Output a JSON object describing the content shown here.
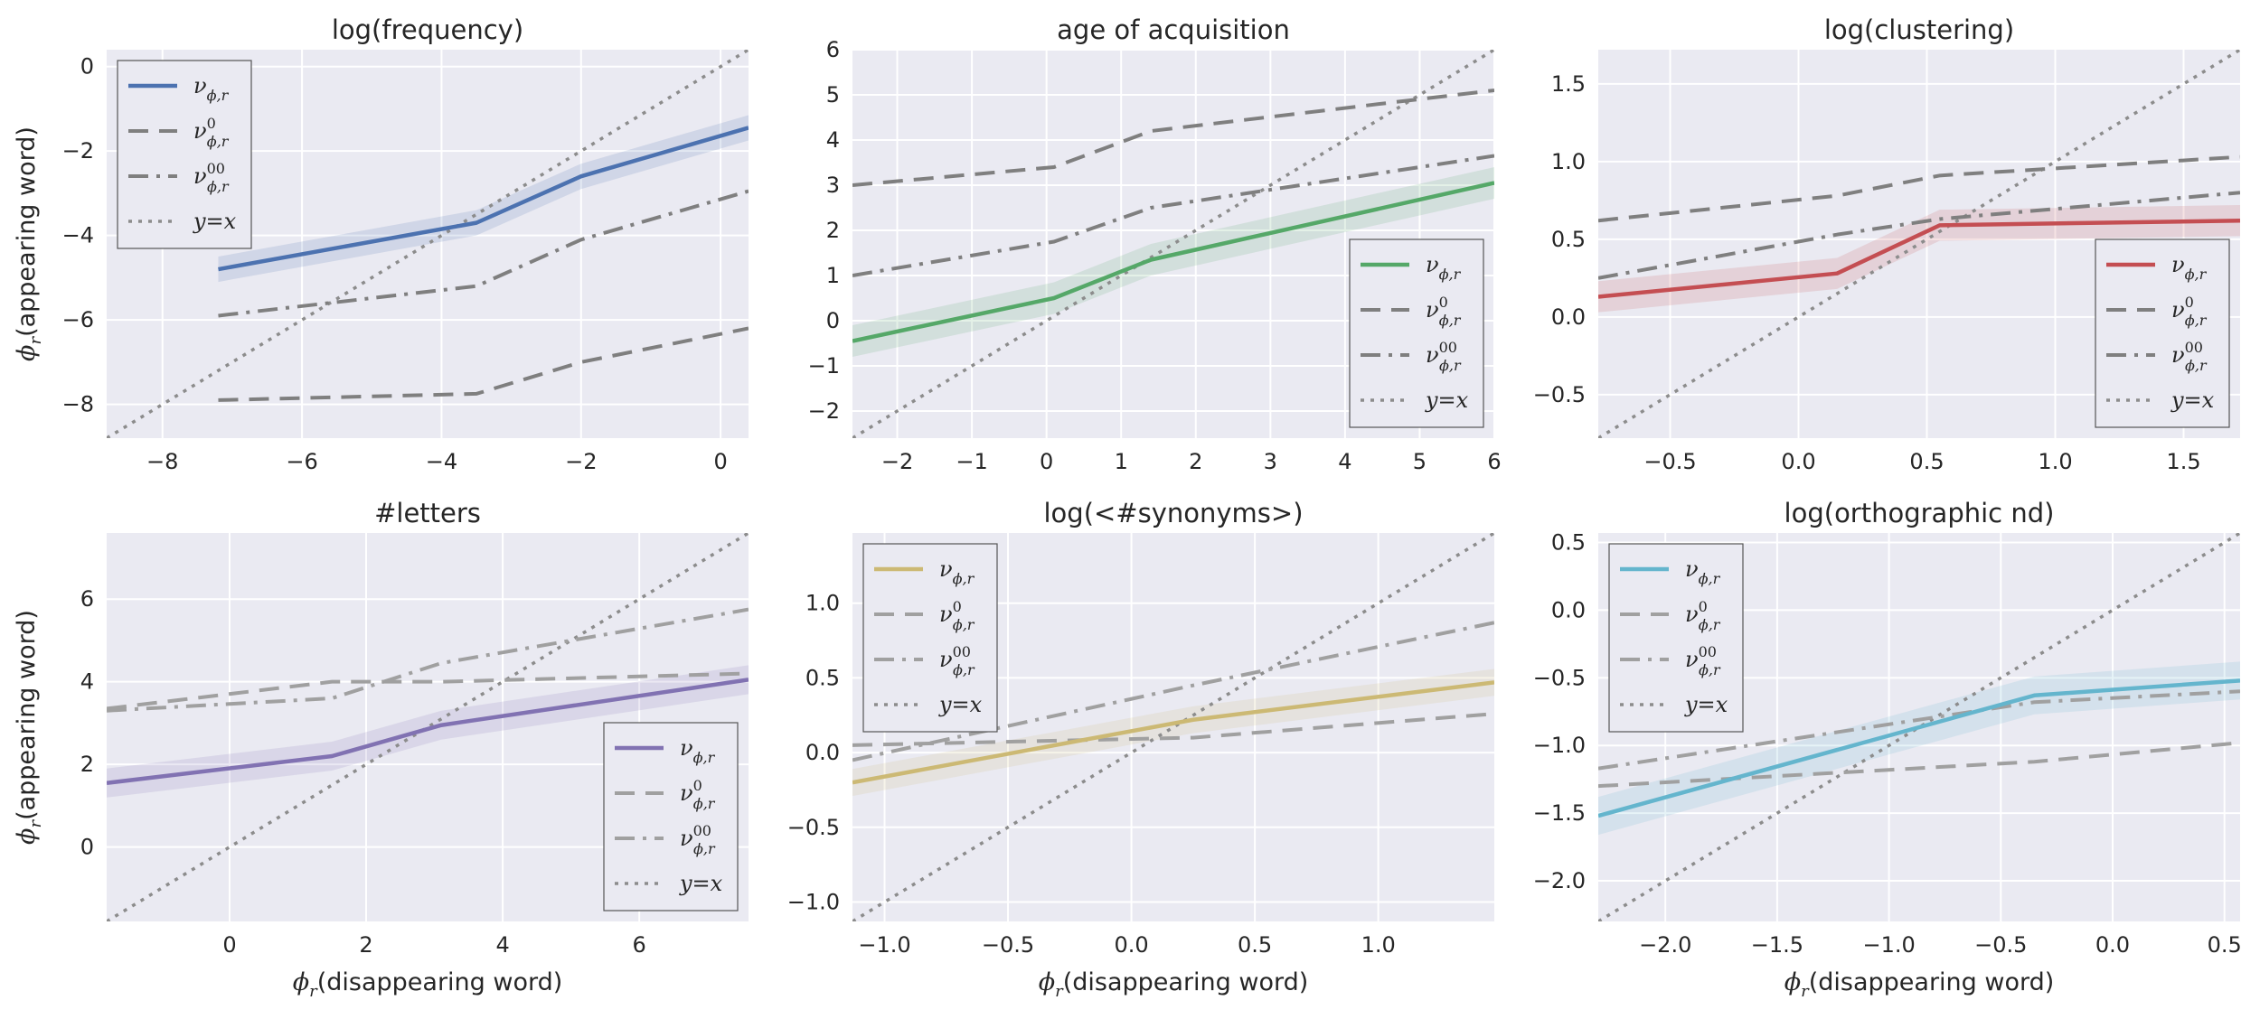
{
  "chart_data": [
    {
      "type": "line",
      "title": "log(frequency)",
      "xlabel": "",
      "ylabel": "ϕr(appearing word)",
      "xlim": [
        -8.8,
        0.4
      ],
      "ylim": [
        -8.8,
        0.4
      ],
      "xticks": [
        "−8",
        "−6",
        "−4",
        "−2",
        "0"
      ],
      "yticks": [
        "−8",
        "−6",
        "−4",
        "−2",
        "0"
      ],
      "xtick_values": [
        -8,
        -6,
        -4,
        -2,
        0
      ],
      "ytick_values": [
        -8,
        -6,
        -4,
        -2,
        0
      ],
      "grid": true,
      "legend_position": "top-left",
      "color": "#4c72b0",
      "x": [
        -7.2,
        -3.5,
        -2.0,
        0.4
      ],
      "series": [
        {
          "name": "νϕ,r",
          "values": [
            -4.8,
            -3.7,
            -2.6,
            -1.45
          ],
          "ci": 0.3
        },
        {
          "name": "ν0ϕ,r",
          "values": [
            -7.9,
            -7.75,
            -7.0,
            -6.2
          ]
        },
        {
          "name": "ν00ϕ,r",
          "values": [
            -5.9,
            -5.2,
            -4.1,
            -2.95
          ]
        },
        {
          "name": "y=x"
        }
      ]
    },
    {
      "type": "line",
      "title": "age of acquisition",
      "xlabel": "",
      "ylabel": "",
      "xlim": [
        -2.6,
        6.0
      ],
      "ylim": [
        -2.6,
        6.0
      ],
      "xticks": [
        "−2",
        "−1",
        "0",
        "1",
        "2",
        "3",
        "4",
        "5",
        "6"
      ],
      "yticks": [
        "−2",
        "−1",
        "0",
        "1",
        "2",
        "3",
        "4",
        "5",
        "6"
      ],
      "xtick_values": [
        -2,
        -1,
        0,
        1,
        2,
        3,
        4,
        5,
        6
      ],
      "ytick_values": [
        -2,
        -1,
        0,
        1,
        2,
        3,
        4,
        5,
        6
      ],
      "grid": true,
      "legend_position": "lower-right",
      "color": "#55a868",
      "x": [
        -2.6,
        0.1,
        1.4,
        6.0
      ],
      "series": [
        {
          "name": "νϕ,r",
          "values": [
            -0.45,
            0.5,
            1.35,
            3.05
          ],
          "ci": 0.35
        },
        {
          "name": "ν0ϕ,r",
          "values": [
            3.0,
            3.4,
            4.2,
            5.1
          ]
        },
        {
          "name": "ν00ϕ,r",
          "values": [
            1.0,
            1.75,
            2.5,
            3.65
          ]
        },
        {
          "name": "y=x"
        }
      ]
    },
    {
      "type": "line",
      "title": "log(clustering)",
      "xlabel": "",
      "ylabel": "",
      "xlim": [
        -0.78,
        1.72
      ],
      "ylim": [
        -0.78,
        1.72
      ],
      "xticks": [
        "−0.5",
        "0.0",
        "0.5",
        "1.0",
        "1.5"
      ],
      "yticks": [
        "−0.5",
        "0.0",
        "0.5",
        "1.0",
        "1.5"
      ],
      "xtick_values": [
        -0.5,
        0.0,
        0.5,
        1.0,
        1.5
      ],
      "ytick_values": [
        -0.5,
        0.0,
        0.5,
        1.0,
        1.5
      ],
      "grid": true,
      "legend_position": "lower-right",
      "color": "#c44e52",
      "x": [
        -0.78,
        0.15,
        0.55,
        1.72
      ],
      "series": [
        {
          "name": "νϕ,r",
          "values": [
            0.13,
            0.28,
            0.59,
            0.62
          ],
          "ci": 0.1
        },
        {
          "name": "ν0ϕ,r",
          "values": [
            0.62,
            0.78,
            0.91,
            1.03
          ]
        },
        {
          "name": "ν00ϕ,r",
          "values": [
            0.25,
            0.53,
            0.63,
            0.8
          ]
        },
        {
          "name": "y=x"
        }
      ]
    },
    {
      "type": "line",
      "title": "#letters",
      "xlabel": "ϕr(disappearing word)",
      "ylabel": "ϕr(appearing word)",
      "xlim": [
        -1.8,
        7.6
      ],
      "ylim": [
        -1.8,
        7.6
      ],
      "xticks": [
        "0",
        "2",
        "4",
        "6"
      ],
      "yticks": [
        "0",
        "2",
        "4",
        "6"
      ],
      "xtick_values": [
        0,
        2,
        4,
        6
      ],
      "ytick_values": [
        0,
        2,
        4,
        6
      ],
      "grid": true,
      "legend_position": "lower-right",
      "color": "#8172b2",
      "x": [
        -1.8,
        1.5,
        3.1,
        7.6
      ],
      "series": [
        {
          "name": "νϕ,r",
          "values": [
            1.55,
            2.2,
            2.95,
            4.05
          ],
          "ci": 0.35
        },
        {
          "name": "ν0ϕ,r",
          "values": [
            3.35,
            4.0,
            4.0,
            4.2
          ]
        },
        {
          "name": "ν00ϕ,r",
          "values": [
            3.3,
            3.6,
            4.45,
            5.75
          ]
        },
        {
          "name": "y=x"
        }
      ]
    },
    {
      "type": "line",
      "title": "log(<#synonyms>)",
      "xlabel": "ϕr(disappearing word)",
      "ylabel": "",
      "xlim": [
        -1.13,
        1.47
      ],
      "ylim": [
        -1.13,
        1.47
      ],
      "xticks": [
        "−1.0",
        "−0.5",
        "0.0",
        "0.5",
        "1.0"
      ],
      "yticks": [
        "−1.0",
        "−0.5",
        "0.0",
        "0.5",
        "1.0"
      ],
      "xtick_values": [
        -1.0,
        -0.5,
        0.0,
        0.5,
        1.0
      ],
      "ytick_values": [
        -1.0,
        -0.5,
        0.0,
        0.5,
        1.0
      ],
      "grid": true,
      "legend_position": "top-left",
      "color": "#ccb974",
      "x": [
        -1.13,
        0.25,
        1.47
      ],
      "series": [
        {
          "name": "νϕ,r",
          "values": [
            -0.2,
            0.22,
            0.47
          ],
          "ci": 0.09
        },
        {
          "name": "ν0ϕ,r",
          "values": [
            0.05,
            0.1,
            0.26
          ]
        },
        {
          "name": "ν00ϕ,r",
          "values": [
            -0.05,
            0.45,
            0.87
          ]
        },
        {
          "name": "y=x"
        }
      ]
    },
    {
      "type": "line",
      "title": "log(orthographic nd)",
      "xlabel": "ϕr(disappearing word)",
      "ylabel": "",
      "xlim": [
        -2.3,
        0.57
      ],
      "ylim": [
        -2.3,
        0.57
      ],
      "xticks": [
        "−2.0",
        "−1.5",
        "−1.0",
        "−0.5",
        "0.0",
        "0.5"
      ],
      "yticks": [
        "−2.0",
        "−1.5",
        "−1.0",
        "−0.5",
        "0.0",
        "0.5"
      ],
      "xtick_values": [
        -2.0,
        -1.5,
        -1.0,
        -0.5,
        0.0,
        0.5
      ],
      "ytick_values": [
        -2.0,
        -1.5,
        -1.0,
        -0.5,
        0.0,
        0.5
      ],
      "grid": true,
      "legend_position": "top-left",
      "color": "#64b5cd",
      "x": [
        -2.3,
        -0.35,
        0.57
      ],
      "series": [
        {
          "name": "νϕ,r",
          "values": [
            -1.52,
            -0.63,
            -0.52
          ],
          "ci": 0.14
        },
        {
          "name": "ν0ϕ,r",
          "values": [
            -1.3,
            -1.12,
            -0.98
          ]
        },
        {
          "name": "ν00ϕ,r",
          "values": [
            -1.17,
            -0.68,
            -0.6
          ]
        },
        {
          "name": "y=x"
        }
      ]
    }
  ]
}
